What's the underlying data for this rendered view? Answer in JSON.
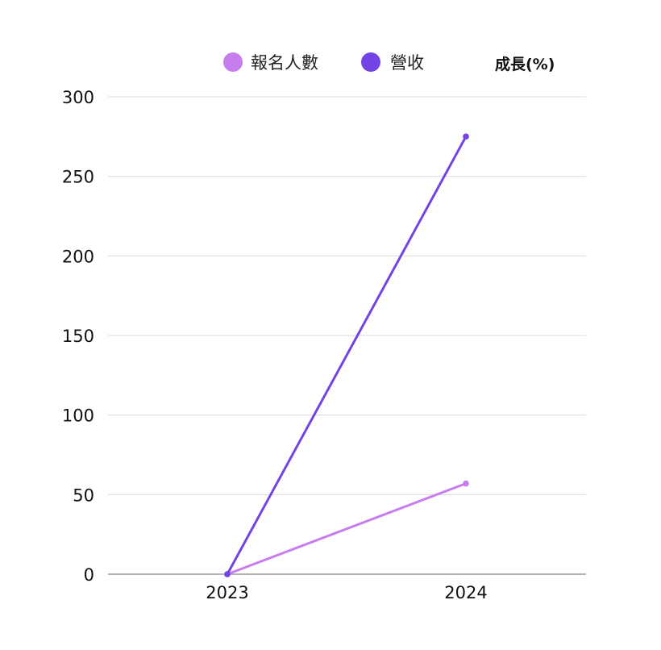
{
  "chart_data": {
    "type": "line",
    "title": "",
    "xlabel": "",
    "ylabel": "成長(%)",
    "categories": [
      "2023",
      "2024"
    ],
    "series": [
      {
        "name": "報名人數",
        "color": "#c77dee",
        "values": [
          0,
          57
        ]
      },
      {
        "name": "營收",
        "color": "#7343e3",
        "values": [
          0,
          275
        ]
      }
    ],
    "ylim": [
      0,
      300
    ],
    "yticks": [
      "0",
      "50",
      "100",
      "150",
      "200",
      "250",
      "300"
    ],
    "grid": true,
    "legend_position": "top"
  }
}
